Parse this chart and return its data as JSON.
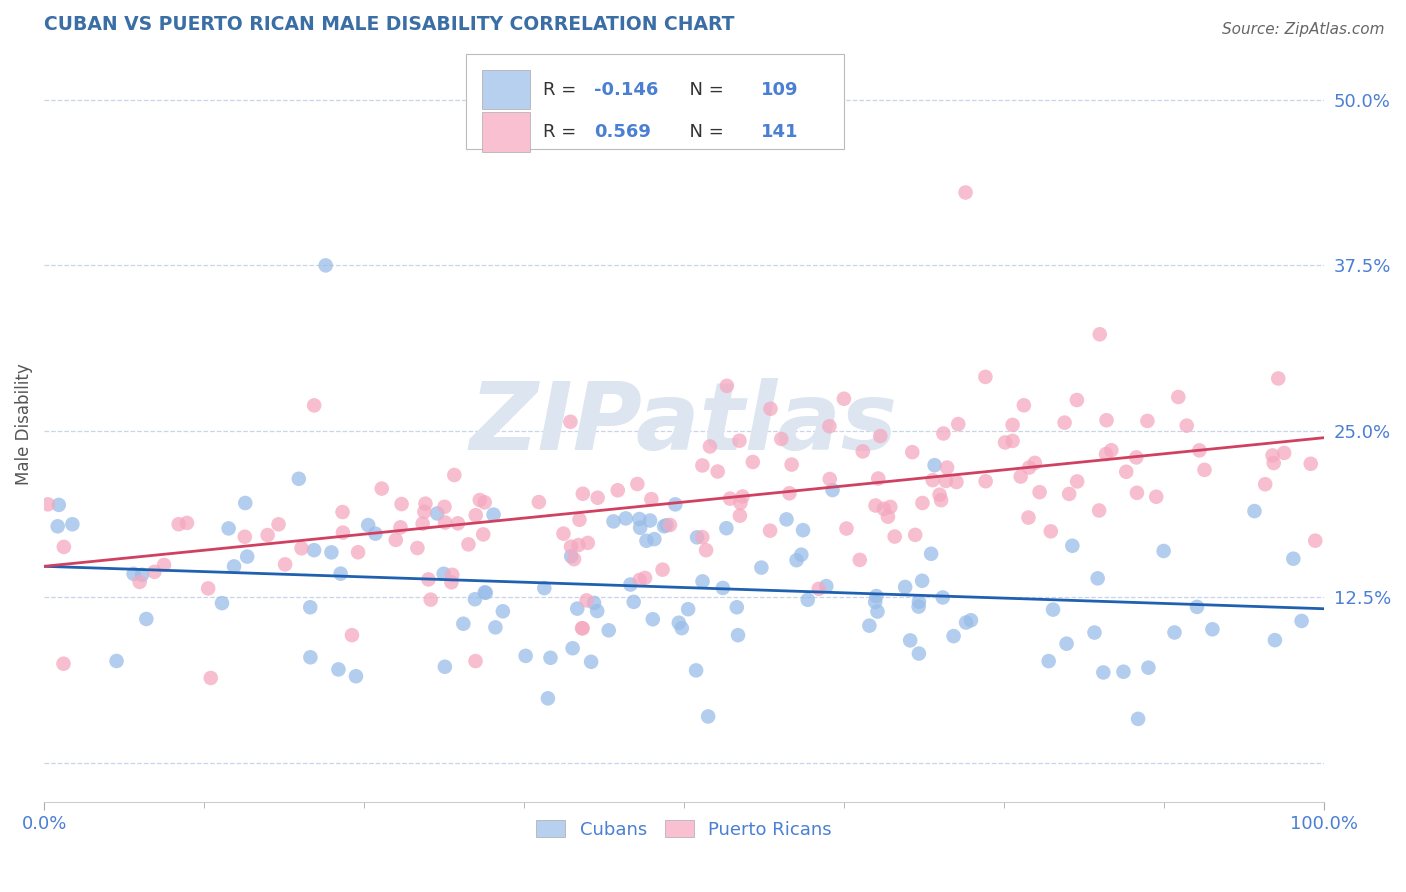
{
  "title": "CUBAN VS PUERTO RICAN MALE DISABILITY CORRELATION CHART",
  "source_text": "Source: ZipAtlas.com",
  "ylabel": "Male Disability",
  "xlim": [
    0.0,
    1.0
  ],
  "ylim": [
    -0.03,
    0.54
  ],
  "yticks": [
    0.0,
    0.125,
    0.25,
    0.375,
    0.5
  ],
  "ytick_labels": [
    "",
    "12.5%",
    "25.0%",
    "37.5%",
    "50.0%"
  ],
  "xtick_labels": [
    "0.0%",
    "100.0%"
  ],
  "blue_R": -0.146,
  "blue_N": 109,
  "pink_R": 0.569,
  "pink_N": 141,
  "blue_scatter_color": "#99bde8",
  "pink_scatter_color": "#f5a8c0",
  "blue_line_color": "#2060b0",
  "pink_line_color": "#d04060",
  "title_color": "#3a6ea5",
  "axis_label_color": "#4a7fd4",
  "watermark_color": "#dde5f0",
  "background_color": "#ffffff",
  "grid_color": "#c8d4e8",
  "legend_blue_color": "#b8d0f0",
  "legend_pink_color": "#f8c0d0",
  "blue_line_start_y": 0.148,
  "blue_line_end_y": 0.116,
  "pink_line_start_y": 0.148,
  "pink_line_end_y": 0.245
}
